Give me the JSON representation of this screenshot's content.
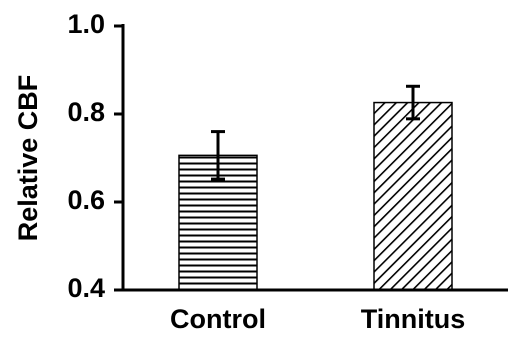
{
  "chart_data": {
    "type": "bar",
    "categories": [
      "Control",
      "Tinnitus"
    ],
    "values": [
      0.706,
      0.826
    ],
    "errors": [
      0.054,
      0.037
    ],
    "title": "",
    "xlabel": "",
    "ylabel": "Relative CBF",
    "ylim": [
      0.4,
      1.0
    ],
    "yticks": [
      0.4,
      0.6,
      0.8,
      1.0
    ],
    "ytick_labels": [
      "0.4",
      "0.6",
      "0.8",
      "1.0"
    ],
    "bar_patterns": [
      "horizontal-hatch",
      "diagonal-hatch"
    ],
    "colors": {
      "axis": "#000000",
      "bar_edge": "#000000",
      "bar_fill": "#ffffff",
      "hatch": "#000000"
    },
    "grid": false,
    "legend": "none"
  }
}
